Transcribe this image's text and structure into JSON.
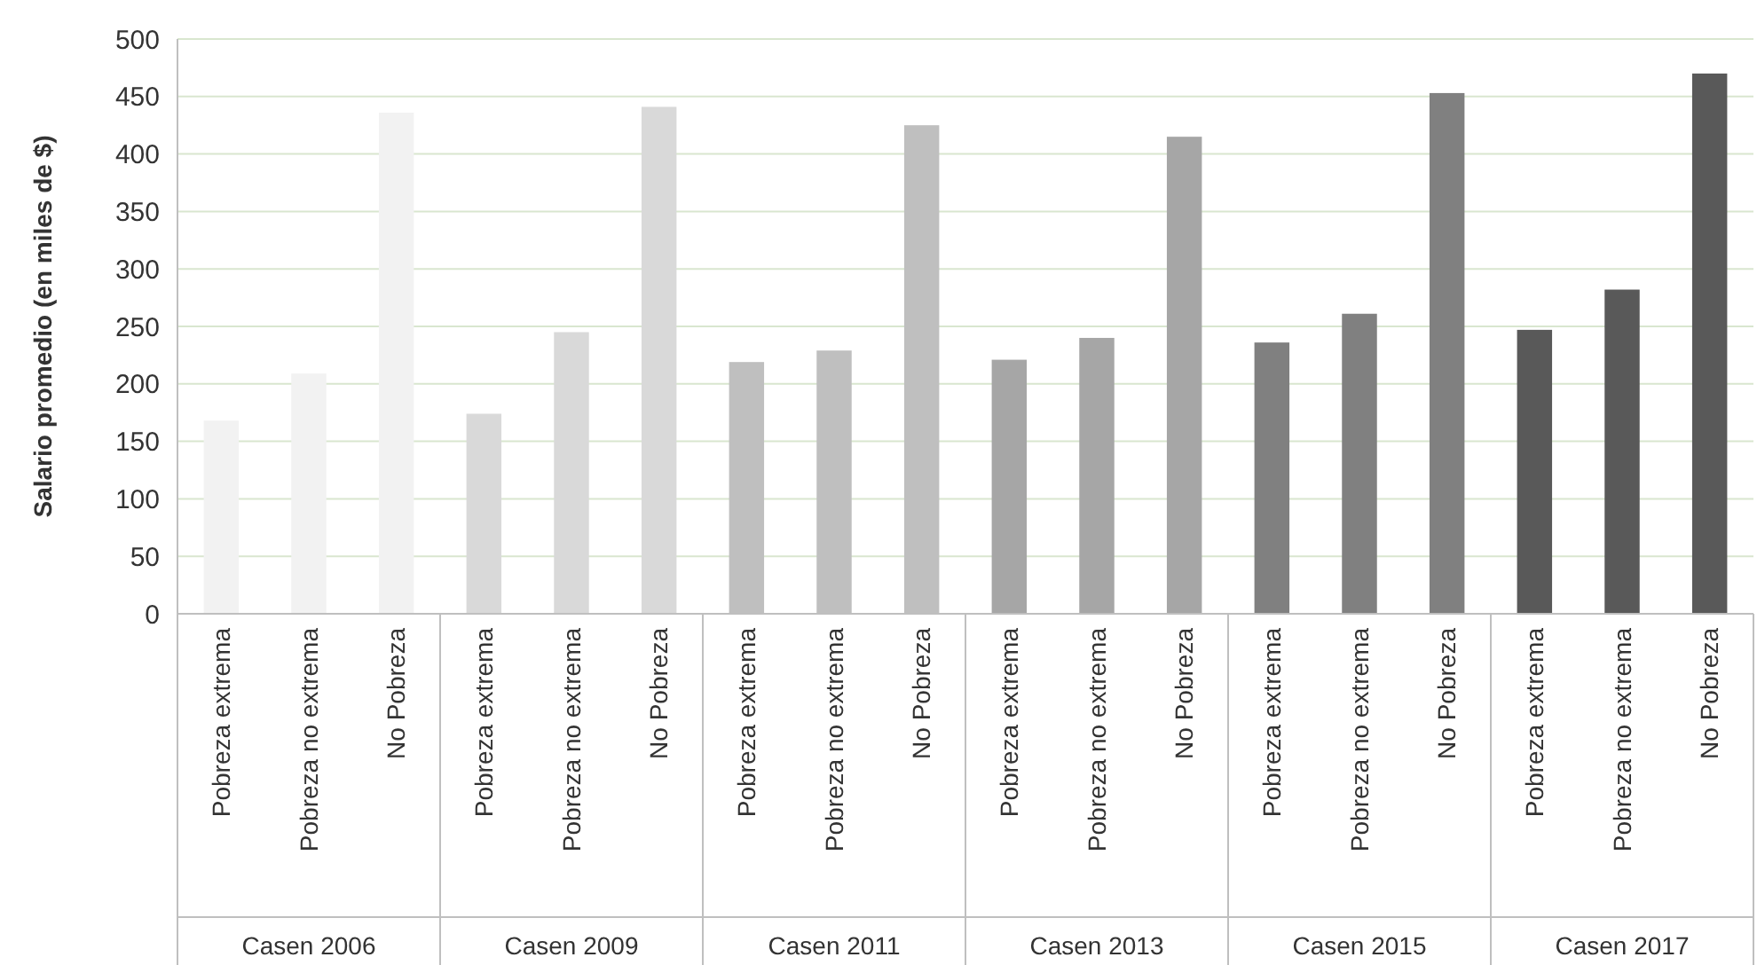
{
  "chart_data": {
    "type": "bar",
    "ylabel": "Salario promedio (en miles de $)",
    "categories": [
      "Pobreza extrema",
      "Pobreza no extrema",
      "No Pobreza",
      "Pobreza extrema",
      "Pobreza no extrema",
      "No Pobreza",
      "Pobreza extrema",
      "Pobreza no extrema",
      "No Pobreza",
      "Pobreza extrema",
      "Pobreza no extrema",
      "No Pobreza",
      "Pobreza extrema",
      "Pobreza no extrema",
      "No Pobreza",
      "Pobreza extrema",
      "Pobreza no extrema",
      "No Pobreza"
    ],
    "values": [
      168,
      209,
      436,
      174,
      245,
      441,
      219,
      229,
      425,
      221,
      240,
      415,
      236,
      261,
      453,
      247,
      282,
      470
    ],
    "colors": [
      "#f2f2f2",
      "#f2f2f2",
      "#f2f2f2",
      "#d9d9d9",
      "#d9d9d9",
      "#d9d9d9",
      "#bfbfbf",
      "#bfbfbf",
      "#bfbfbf",
      "#a6a6a6",
      "#a6a6a6",
      "#a6a6a6",
      "#808080",
      "#808080",
      "#808080",
      "#595959",
      "#595959",
      "#595959"
    ],
    "annotations": [
      "Casen 2006",
      "Casen 2009",
      "Casen 2011",
      "Casen 2013",
      "Casen 2015",
      "Casen 2017"
    ],
    "ylim": [
      0,
      500
    ],
    "yticks": [
      0,
      50,
      100,
      150,
      200,
      250,
      300,
      350,
      400,
      450,
      500
    ],
    "grid": "y"
  }
}
